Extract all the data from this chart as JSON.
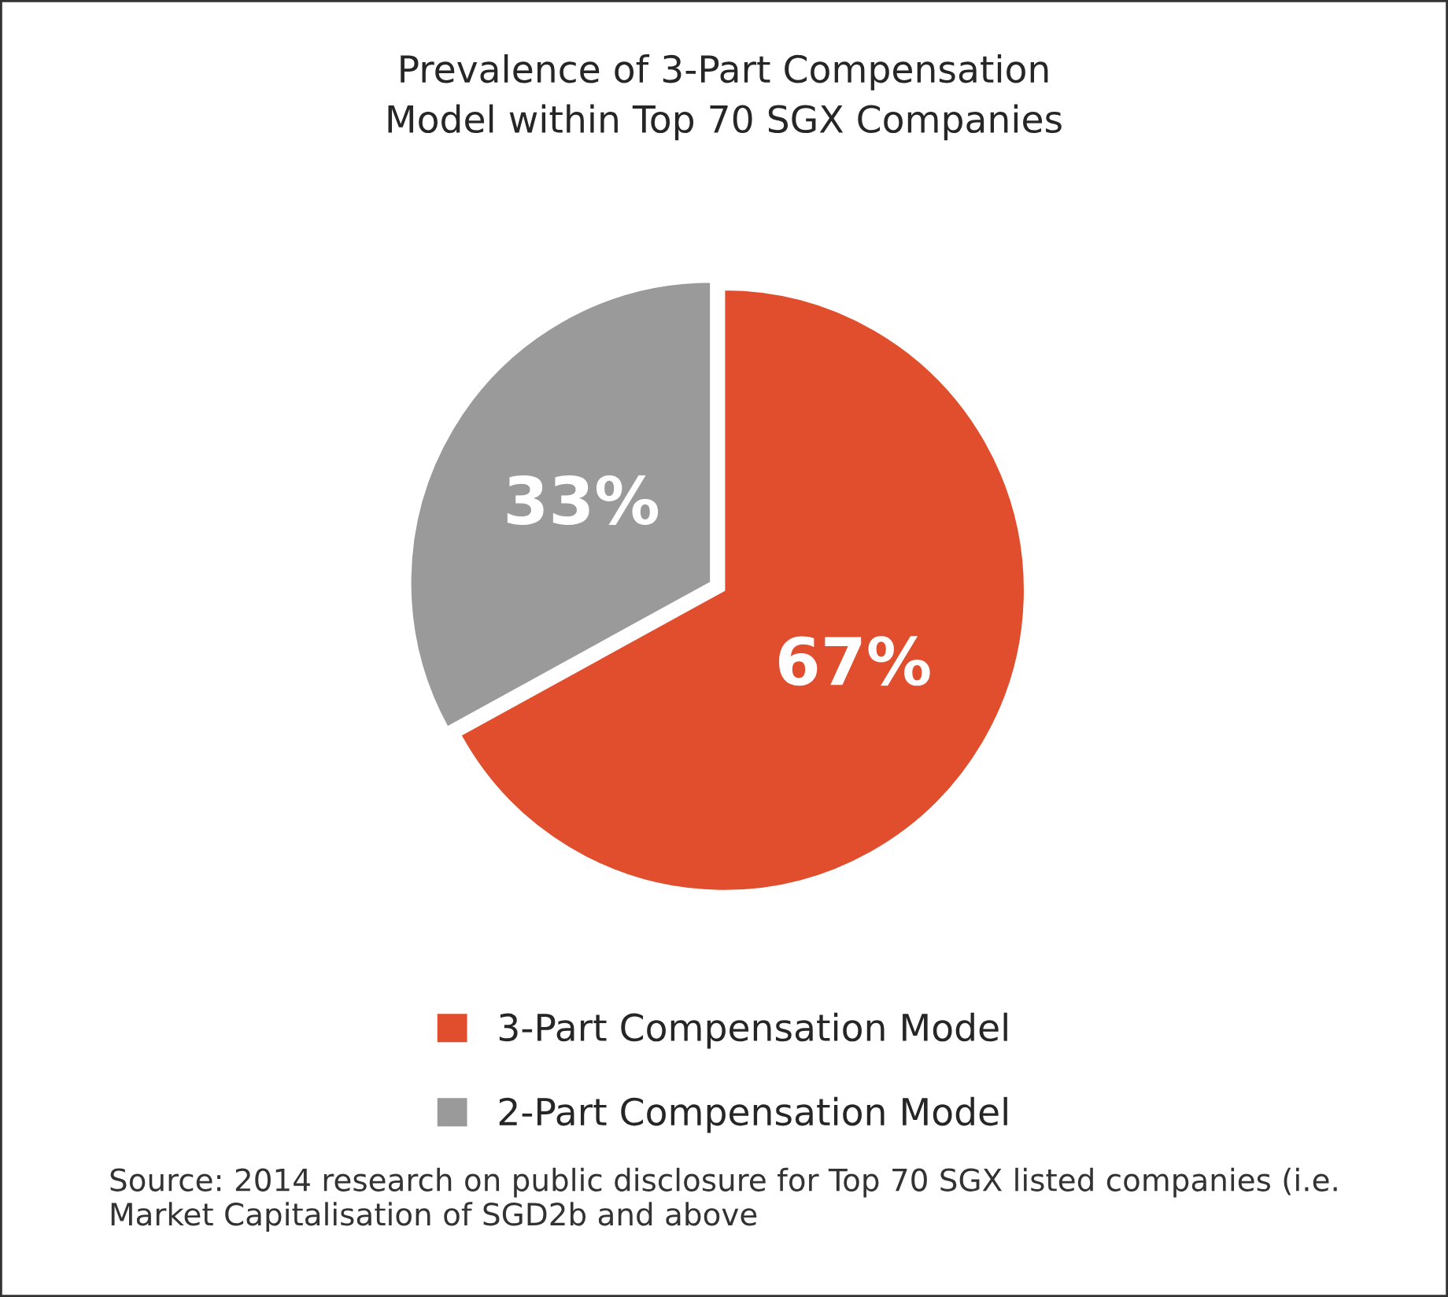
{
  "chart_data": {
    "type": "pie",
    "title": "Prevalence of 3-Part Compensation\nModel within Top 70 SGX Companies",
    "categories": [
      "3-Part Compensation Model",
      "2-Part Compensation Model"
    ],
    "values": [
      67,
      33
    ],
    "colors": [
      "#e04e2e",
      "#9a9a9a"
    ],
    "value_labels": [
      "67%",
      "33%"
    ],
    "legend": "bottom",
    "annotations": [
      "Source: 2014 research on public disclosure for Top 70 SGX listed companies (i.e. Market Capitalisation of SGD2b and above"
    ]
  }
}
